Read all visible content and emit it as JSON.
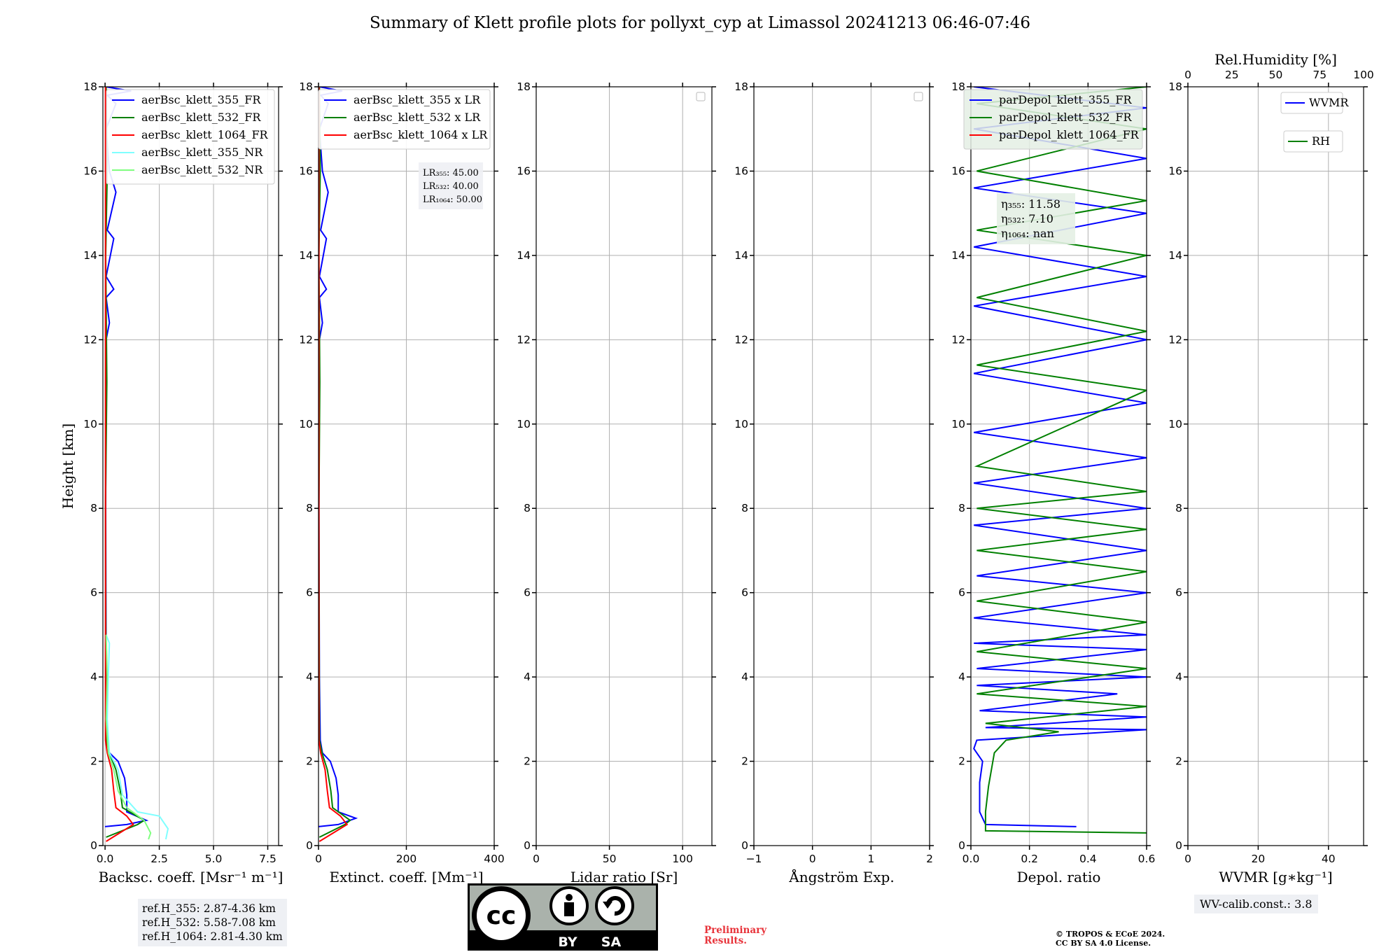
{
  "figure": {
    "title": "Summary of Klett profile plots for pollyxt_cyp at Limassol 20241213 06:46-07:46",
    "ref_heights": [
      "ref.H_355: 2.87-4.36 km",
      "ref.H_532: 5.58-7.08 km",
      "ref.H_1064: 2.81-4.30 km"
    ],
    "wv_calib": "WV-calib.const.: 3.8",
    "preliminary": [
      "Preliminary",
      "Results."
    ],
    "copyright": [
      "© TROPOS & ECoE 2024.",
      "CC BY SA 4.0 License."
    ],
    "license_badge": [
      "BY",
      "SA"
    ],
    "colors": {
      "blue": "#0000ff",
      "green": "#008000",
      "red": "#ff0000",
      "cyan": "#80ffff",
      "lightgreen": "#80ff80"
    }
  },
  "chart_data": [
    {
      "type": "line",
      "xlabel": "Backsc. coeff. [Msr⁻¹ m⁻¹]",
      "ylabel": "Height [km]",
      "xlim": [
        -0.1,
        8.0
      ],
      "ylim": [
        0,
        18
      ],
      "xticks": [
        0,
        2.5,
        5.0,
        7.5
      ],
      "xtick_labels": [
        "0.0",
        "2.5",
        "5.0",
        "7.5"
      ],
      "yticks": [
        0,
        2,
        4,
        6,
        8,
        10,
        12,
        14,
        16,
        18
      ],
      "legend": {
        "position": "top-right"
      },
      "series": [
        {
          "name": "aerBsc_klett_355_FR",
          "color": "#0000ff",
          "points": [
            [
              0.0,
              0.45
            ],
            [
              1.0,
              0.5
            ],
            [
              1.9,
              0.6
            ],
            [
              1.0,
              0.8
            ],
            [
              1.0,
              1.2
            ],
            [
              0.9,
              1.6
            ],
            [
              0.6,
              2.0
            ],
            [
              0.2,
              2.2
            ],
            [
              0.08,
              2.5
            ],
            [
              0.05,
              4.0
            ],
            [
              0.03,
              8.0
            ],
            [
              0.05,
              12.0
            ],
            [
              0.2,
              12.4
            ],
            [
              0.05,
              13.0
            ],
            [
              0.4,
              13.2
            ],
            [
              0.05,
              13.5
            ],
            [
              0.4,
              14.4
            ],
            [
              0.1,
              14.6
            ],
            [
              0.5,
              15.5
            ],
            [
              0.2,
              16.0
            ],
            [
              0.05,
              17.0
            ],
            [
              0.5,
              17.6
            ],
            [
              0.1,
              17.8
            ],
            [
              1.2,
              17.9
            ],
            [
              0.05,
              18.0
            ]
          ]
        },
        {
          "name": "aerBsc_klett_532_FR",
          "color": "#008000",
          "points": [
            [
              0.05,
              0.2
            ],
            [
              1.5,
              0.5
            ],
            [
              1.8,
              0.6
            ],
            [
              0.8,
              0.9
            ],
            [
              0.7,
              1.3
            ],
            [
              0.5,
              1.8
            ],
            [
              0.2,
              2.2
            ],
            [
              0.05,
              2.5
            ],
            [
              0.02,
              8.0
            ],
            [
              0.08,
              11.0
            ],
            [
              0.03,
              14.0
            ],
            [
              0.1,
              16.0
            ],
            [
              0.05,
              18.0
            ]
          ]
        },
        {
          "name": "aerBsc_klett_1064_FR",
          "color": "#ff0000",
          "points": [
            [
              0.05,
              0.1
            ],
            [
              1.3,
              0.5
            ],
            [
              1.0,
              0.7
            ],
            [
              0.5,
              0.9
            ],
            [
              0.4,
              1.3
            ],
            [
              0.3,
              1.8
            ],
            [
              0.1,
              2.2
            ],
            [
              0.02,
              2.5
            ],
            [
              0.02,
              18.0
            ]
          ]
        },
        {
          "name": "aerBsc_klett_355_NR",
          "color": "#80ffff",
          "points": [
            [
              2.8,
              0.15
            ],
            [
              2.9,
              0.4
            ],
            [
              2.5,
              0.7
            ],
            [
              1.5,
              0.8
            ],
            [
              0.8,
              1.2
            ],
            [
              0.6,
              1.8
            ],
            [
              0.2,
              2.2
            ],
            [
              0.1,
              3.0
            ],
            [
              0.15,
              4.0
            ],
            [
              0.2,
              4.8
            ],
            [
              0.05,
              5.0
            ]
          ]
        },
        {
          "name": "aerBsc_klett_532_NR",
          "color": "#80ff80",
          "points": [
            [
              2.0,
              0.15
            ],
            [
              2.1,
              0.3
            ],
            [
              1.8,
              0.6
            ],
            [
              1.0,
              0.9
            ],
            [
              0.6,
              1.3
            ],
            [
              0.4,
              1.8
            ],
            [
              0.15,
              2.2
            ],
            [
              0.05,
              3.0
            ],
            [
              0.1,
              4.0
            ],
            [
              0.05,
              5.0
            ]
          ]
        }
      ],
      "note_lines": []
    },
    {
      "type": "line",
      "xlabel": "Extinct. coeff. [Mm⁻¹]",
      "ylabel": "",
      "xlim": [
        0,
        400
      ],
      "ylim": [
        0,
        18
      ],
      "xticks": [
        0,
        200,
        400
      ],
      "xtick_labels": [
        "0",
        "200",
        "400"
      ],
      "yticks": [
        0,
        2,
        4,
        6,
        8,
        10,
        12,
        14,
        16,
        18
      ],
      "legend": {
        "position": "top-right"
      },
      "series": [
        {
          "name": "aerBsc_klett_355 x LR",
          "color": "#0000ff",
          "points": [
            [
              0,
              0.45
            ],
            [
              45,
              0.5
            ],
            [
              85,
              0.65
            ],
            [
              45,
              0.8
            ],
            [
              45,
              1.2
            ],
            [
              40,
              1.6
            ],
            [
              27,
              2.0
            ],
            [
              9,
              2.2
            ],
            [
              4,
              2.5
            ],
            [
              2,
              4.0
            ],
            [
              1,
              8.0
            ],
            [
              2,
              12.0
            ],
            [
              9,
              12.4
            ],
            [
              2,
              13.0
            ],
            [
              18,
              13.2
            ],
            [
              2,
              13.5
            ],
            [
              18,
              14.4
            ],
            [
              5,
              14.6
            ],
            [
              22,
              15.5
            ],
            [
              9,
              16.0
            ],
            [
              2,
              17.0
            ],
            [
              22,
              17.6
            ],
            [
              5,
              17.8
            ],
            [
              54,
              17.9
            ],
            [
              2,
              18.0
            ]
          ]
        },
        {
          "name": "aerBsc_klett_532 x LR",
          "color": "#008000",
          "points": [
            [
              2,
              0.2
            ],
            [
              60,
              0.5
            ],
            [
              72,
              0.6
            ],
            [
              32,
              0.9
            ],
            [
              28,
              1.3
            ],
            [
              20,
              1.8
            ],
            [
              8,
              2.2
            ],
            [
              2,
              2.5
            ],
            [
              1,
              8.0
            ],
            [
              3,
              11.0
            ],
            [
              1,
              14.0
            ],
            [
              4,
              16.0
            ],
            [
              2,
              18.0
            ]
          ]
        },
        {
          "name": "aerBsc_klett_1064 x LR",
          "color": "#ff0000",
          "points": [
            [
              2,
              0.1
            ],
            [
              65,
              0.5
            ],
            [
              50,
              0.7
            ],
            [
              25,
              0.9
            ],
            [
              20,
              1.3
            ],
            [
              15,
              1.8
            ],
            [
              5,
              2.2
            ],
            [
              1,
              2.5
            ],
            [
              1,
              18.0
            ]
          ]
        }
      ],
      "note_lines": [
        "LR₃₅₅: 45.00",
        "LR₅₃₂: 40.00",
        "LR₁₀₆₄: 50.00"
      ]
    },
    {
      "type": "line",
      "xlabel": "Lidar ratio [Sr]",
      "ylabel": "",
      "xlim": [
        0,
        120
      ],
      "ylim": [
        0,
        18
      ],
      "xticks": [
        0,
        50,
        100
      ],
      "xtick_labels": [
        "0",
        "50",
        "100"
      ],
      "yticks": [
        0,
        2,
        4,
        6,
        8,
        10,
        12,
        14,
        16,
        18
      ],
      "legend": {
        "position": "top-right"
      },
      "series": [],
      "note_lines": []
    },
    {
      "type": "line",
      "xlabel": "Ångström Exp.",
      "ylabel": "",
      "xlim": [
        -1,
        2
      ],
      "ylim": [
        0,
        18
      ],
      "xticks": [
        -1,
        0,
        1,
        2
      ],
      "xtick_labels": [
        "−1",
        "0",
        "1",
        "2"
      ],
      "yticks": [
        0,
        2,
        4,
        6,
        8,
        10,
        12,
        14,
        16,
        18
      ],
      "legend": {
        "position": "top-right"
      },
      "series": [],
      "note_lines": []
    },
    {
      "type": "line",
      "xlabel": "Depol. ratio",
      "ylabel": "",
      "xlim": [
        0,
        0.6
      ],
      "ylim": [
        0,
        18
      ],
      "xticks": [
        0,
        0.2,
        0.4,
        0.6
      ],
      "xtick_labels": [
        "0.0",
        "0.2",
        "0.4",
        "0.6"
      ],
      "yticks": [
        0,
        2,
        4,
        6,
        8,
        10,
        12,
        14,
        16,
        18
      ],
      "legend": {
        "position": "top-right"
      },
      "series": [
        {
          "name": "parDepol_klett_355_FR",
          "color": "#0000ff",
          "points": [
            [
              0.36,
              0.45
            ],
            [
              0.05,
              0.5
            ],
            [
              0.03,
              0.8
            ],
            [
              0.03,
              1.5
            ],
            [
              0.04,
              2.0
            ],
            [
              0.01,
              2.3
            ],
            [
              0.02,
              2.5
            ],
            [
              0.6,
              2.75
            ],
            [
              0.05,
              2.8
            ],
            [
              0.6,
              3.05
            ],
            [
              0.03,
              3.2
            ],
            [
              0.5,
              3.6
            ],
            [
              0.02,
              3.8
            ],
            [
              0.6,
              4.0
            ],
            [
              0.02,
              4.2
            ],
            [
              0.6,
              4.65
            ],
            [
              0.01,
              4.8
            ],
            [
              0.6,
              5.0
            ],
            [
              0.01,
              5.4
            ],
            [
              0.6,
              6.0
            ],
            [
              0.02,
              6.4
            ],
            [
              0.6,
              7.0
            ],
            [
              0.01,
              7.6
            ],
            [
              0.6,
              8.0
            ],
            [
              0.01,
              8.6
            ],
            [
              0.6,
              9.2
            ],
            [
              0.01,
              9.8
            ],
            [
              0.6,
              10.5
            ],
            [
              0.01,
              11.2
            ],
            [
              0.6,
              12.0
            ],
            [
              0.01,
              12.8
            ],
            [
              0.6,
              13.5
            ],
            [
              0.01,
              14.2
            ],
            [
              0.6,
              15.0
            ],
            [
              0.01,
              15.6
            ],
            [
              0.6,
              16.3
            ],
            [
              0.01,
              17.0
            ],
            [
              0.6,
              17.5
            ],
            [
              0.01,
              18.0
            ]
          ]
        },
        {
          "name": "parDepol_klett_532_FR",
          "color": "#008000",
          "points": [
            [
              0.6,
              0.3
            ],
            [
              0.05,
              0.35
            ],
            [
              0.05,
              0.8
            ],
            [
              0.06,
              1.4
            ],
            [
              0.08,
              2.2
            ],
            [
              0.12,
              2.5
            ],
            [
              0.3,
              2.7
            ],
            [
              0.05,
              2.9
            ],
            [
              0.6,
              3.3
            ],
            [
              0.02,
              3.6
            ],
            [
              0.6,
              4.2
            ],
            [
              0.02,
              4.6
            ],
            [
              0.6,
              5.3
            ],
            [
              0.02,
              5.8
            ],
            [
              0.6,
              6.5
            ],
            [
              0.02,
              7.0
            ],
            [
              0.6,
              7.5
            ],
            [
              0.02,
              8.0
            ],
            [
              0.6,
              8.4
            ],
            [
              0.02,
              9.0
            ],
            [
              0.6,
              10.8
            ],
            [
              0.02,
              11.4
            ],
            [
              0.6,
              12.2
            ],
            [
              0.02,
              13.0
            ],
            [
              0.6,
              14.0
            ],
            [
              0.02,
              14.6
            ],
            [
              0.6,
              15.3
            ],
            [
              0.02,
              16.0
            ],
            [
              0.6,
              17.0
            ],
            [
              0.02,
              17.6
            ],
            [
              0.6,
              18.0
            ]
          ]
        },
        {
          "name": "parDepol_klett_1064_FR",
          "color": "#ff0000",
          "points": []
        }
      ],
      "note_lines": [
        "η₃₅₅: 11.58",
        "η₅₃₂: 7.10",
        "η₁₀₆₄: nan"
      ]
    },
    {
      "type": "line",
      "xlabel": "WVMR [g∗kg⁻¹]",
      "ylabel": "",
      "xlim": [
        0,
        50
      ],
      "ylim": [
        0,
        18
      ],
      "xticks": [
        0,
        20,
        40
      ],
      "xtick_labels": [
        "0",
        "20",
        "40"
      ],
      "yticks": [
        0,
        2,
        4,
        6,
        8,
        10,
        12,
        14,
        16,
        18
      ],
      "top_axis": {
        "label": "Rel.Humidity [%]",
        "ticks": [
          "0",
          "25",
          "50",
          "75",
          "100"
        ]
      },
      "legend": {
        "position": "top-right"
      },
      "series": [
        {
          "name": "WVMR",
          "color": "#0000ff",
          "points": []
        },
        {
          "name": "RH",
          "color": "#008000",
          "points": []
        }
      ],
      "note_lines": []
    }
  ]
}
